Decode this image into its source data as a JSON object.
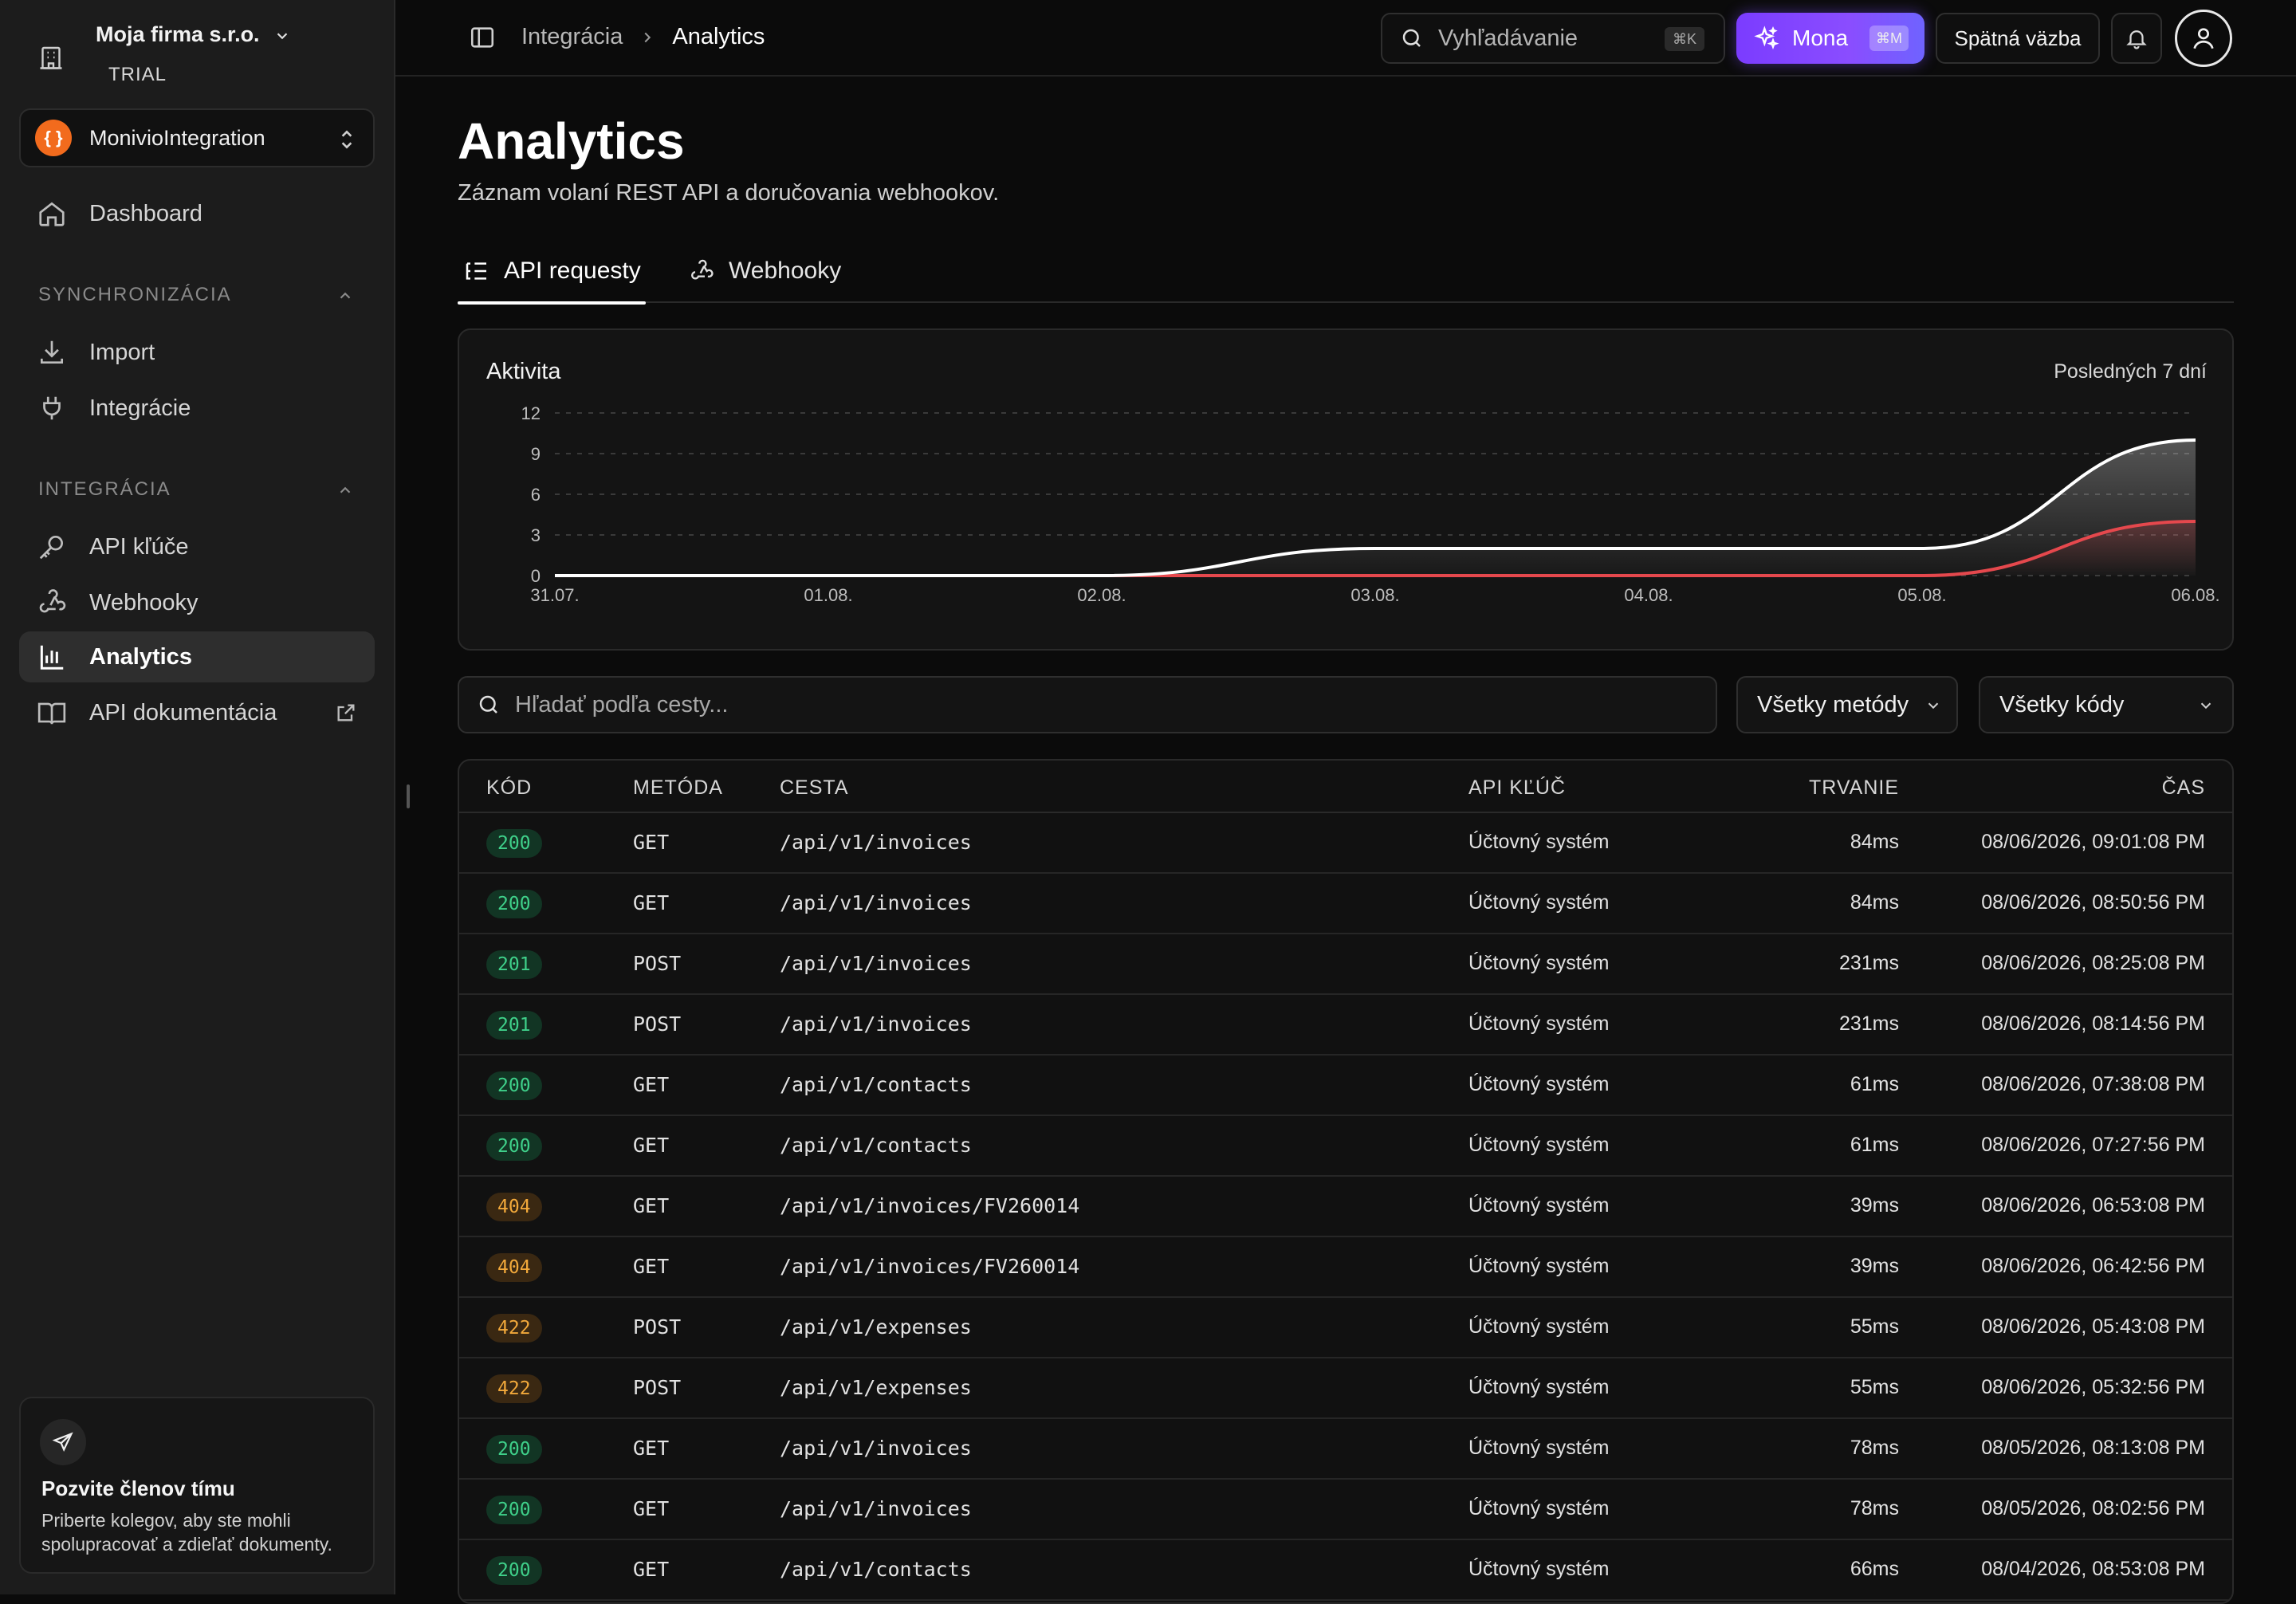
{
  "sidebar": {
    "org_name": "Moja firma s.r.o.",
    "org_plan": "TRIAL",
    "workspace_name": "MonivioIntegration",
    "workspace_logo": "{ }",
    "dashboard": "Dashboard",
    "section_sync": "SYNCHRONIZÁCIA",
    "import": "Import",
    "integrations": "Integrácie",
    "section_integration": "INTEGRÁCIA",
    "api_keys": "API kľúče",
    "webhooks": "Webhooky",
    "analytics": "Analytics",
    "api_docs": "API dokumentácia",
    "invite_title": "Pozvite členov tímu",
    "invite_desc": "Priberte kolegov, aby ste mohli spolupracovať a zdieľať dokumenty."
  },
  "topbar": {
    "crumb_parent": "Integrácia",
    "crumb_current": "Analytics",
    "search_placeholder": "Vyhľadávanie",
    "search_shortcut": "⌘K",
    "mona_label": "Mona",
    "mona_shortcut": "⌘M",
    "feedback_label": "Spätná väzba"
  },
  "page": {
    "title": "Analytics",
    "subtitle": "Záznam volaní REST API a doručovania webhookov.",
    "tab_requests": "API requesty",
    "tab_webhooks": "Webhooky"
  },
  "chart_card": {
    "title": "Aktivita",
    "range": "Posledných 7 dní"
  },
  "chart_data": {
    "type": "area",
    "x": [
      "31.07.",
      "01.08.",
      "02.08.",
      "03.08.",
      "04.08.",
      "05.08.",
      "06.08."
    ],
    "yticks": [
      0,
      3,
      6,
      9,
      12
    ],
    "ylim": [
      0,
      12
    ],
    "grid": true,
    "series": [
      {
        "values": [
          0,
          0,
          0,
          2,
          2,
          2,
          10
        ],
        "color": "#ffffff"
      },
      {
        "values": [
          0,
          0,
          0,
          0,
          0,
          0,
          4
        ],
        "color": "#e5484d"
      }
    ]
  },
  "filters": {
    "path_placeholder": "Hľadať podľa cesty...",
    "methods": "Všetky metódy",
    "codes": "Všetky kódy"
  },
  "table": {
    "headers": {
      "code": "KÓD",
      "method": "METÓDA",
      "path": "CESTA",
      "api_key": "API KĽÚČ",
      "duration": "TRVANIE",
      "time": "ČAS"
    },
    "rows": [
      {
        "code": "200",
        "method": "GET",
        "path": "/api/v1/invoices",
        "key": "Účtovný systém",
        "duration": "84ms",
        "time": "08/06/2026, 09:01:08 PM"
      },
      {
        "code": "200",
        "method": "GET",
        "path": "/api/v1/invoices",
        "key": "Účtovný systém",
        "duration": "84ms",
        "time": "08/06/2026, 08:50:56 PM"
      },
      {
        "code": "201",
        "method": "POST",
        "path": "/api/v1/invoices",
        "key": "Účtovný systém",
        "duration": "231ms",
        "time": "08/06/2026, 08:25:08 PM"
      },
      {
        "code": "201",
        "method": "POST",
        "path": "/api/v1/invoices",
        "key": "Účtovný systém",
        "duration": "231ms",
        "time": "08/06/2026, 08:14:56 PM"
      },
      {
        "code": "200",
        "method": "GET",
        "path": "/api/v1/contacts",
        "key": "Účtovný systém",
        "duration": "61ms",
        "time": "08/06/2026, 07:38:08 PM"
      },
      {
        "code": "200",
        "method": "GET",
        "path": "/api/v1/contacts",
        "key": "Účtovný systém",
        "duration": "61ms",
        "time": "08/06/2026, 07:27:56 PM"
      },
      {
        "code": "404",
        "method": "GET",
        "path": "/api/v1/invoices/FV260014",
        "key": "Účtovný systém",
        "duration": "39ms",
        "time": "08/06/2026, 06:53:08 PM"
      },
      {
        "code": "404",
        "method": "GET",
        "path": "/api/v1/invoices/FV260014",
        "key": "Účtovný systém",
        "duration": "39ms",
        "time": "08/06/2026, 06:42:56 PM"
      },
      {
        "code": "422",
        "method": "POST",
        "path": "/api/v1/expenses",
        "key": "Účtovný systém",
        "duration": "55ms",
        "time": "08/06/2026, 05:43:08 PM"
      },
      {
        "code": "422",
        "method": "POST",
        "path": "/api/v1/expenses",
        "key": "Účtovný systém",
        "duration": "55ms",
        "time": "08/06/2026, 05:32:56 PM"
      },
      {
        "code": "200",
        "method": "GET",
        "path": "/api/v1/invoices",
        "key": "Účtovný systém",
        "duration": "78ms",
        "time": "08/05/2026, 08:13:08 PM"
      },
      {
        "code": "200",
        "method": "GET",
        "path": "/api/v1/invoices",
        "key": "Účtovný systém",
        "duration": "78ms",
        "time": "08/05/2026, 08:02:56 PM"
      },
      {
        "code": "200",
        "method": "GET",
        "path": "/api/v1/contacts",
        "key": "Účtovný systém",
        "duration": "66ms",
        "time": "08/04/2026, 08:53:08 PM"
      }
    ]
  }
}
